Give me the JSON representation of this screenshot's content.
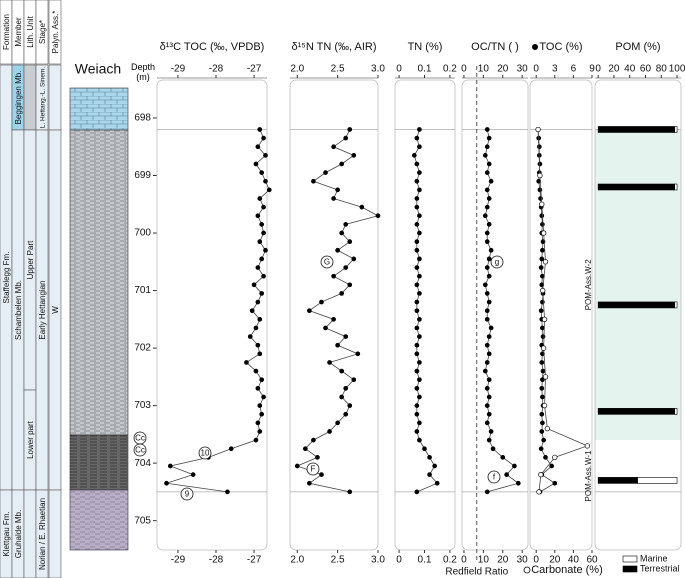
{
  "stratigraphy": {
    "headers": [
      "Formation",
      "Member",
      "Lith. Unit",
      "Stage*",
      "Palyn. Ass.*"
    ],
    "formation": [
      "Staffelegg Fm.",
      "Klettgau Fm."
    ],
    "member": [
      "Beggingen Mb.",
      "Schambelen Mb.",
      "Gruhalde Mb."
    ],
    "lith_unit": [
      "Upper Part",
      "Lower part"
    ],
    "stage": [
      "L. Hettang.-L. Sinem.",
      "Early Hettangian",
      "Norian / E. Rhaetian"
    ],
    "palyn": [
      "W"
    ]
  },
  "lithology": {
    "site": "Weiach",
    "depth_label": "Depth (m)",
    "annotations": [
      "Cc",
      "Cc"
    ]
  },
  "chart_data": [
    {
      "type": "line",
      "title": "δ¹³C TOC (‰, VPDB)",
      "xlim": [
        -29.55,
        -26.66
      ],
      "xticks": [
        -29,
        -28,
        -27
      ],
      "ylim": [
        697.34,
        705.51
      ],
      "yticks": [
        698,
        699,
        700,
        701,
        702,
        703,
        704,
        705
      ],
      "hlines": [
        698.2,
        704.5
      ],
      "annotations": [
        "10",
        "9"
      ],
      "series": [
        {
          "color": "#000000",
          "y": [
            698.2,
            698.35,
            698.5,
            698.65,
            698.8,
            698.95,
            699.1,
            699.25,
            699.4,
            699.55,
            699.7,
            699.85,
            700.0,
            700.15,
            700.3,
            700.45,
            700.6,
            700.75,
            700.9,
            701.05,
            701.2,
            701.35,
            701.5,
            701.65,
            701.8,
            701.95,
            702.1,
            702.25,
            702.4,
            702.55,
            702.7,
            702.85,
            703.0,
            703.15,
            703.3,
            703.45,
            703.6,
            703.75,
            703.9,
            704.05,
            704.2,
            704.35,
            704.5
          ],
          "values": [
            -26.85,
            -26.75,
            -26.9,
            -26.7,
            -26.95,
            -26.8,
            -26.7,
            -26.6,
            -26.85,
            -26.75,
            -26.9,
            -26.8,
            -26.75,
            -26.85,
            -26.7,
            -26.8,
            -26.9,
            -26.75,
            -27.0,
            -26.8,
            -26.9,
            -27.05,
            -26.85,
            -26.95,
            -27.1,
            -26.9,
            -26.85,
            -27.2,
            -26.95,
            -26.8,
            -26.9,
            -26.75,
            -26.85,
            -26.8,
            -26.9,
            -26.85,
            -26.95,
            -27.6,
            -28.2,
            -29.2,
            -28.6,
            -29.3,
            -27.7
          ]
        }
      ]
    },
    {
      "type": "line",
      "title": "δ¹⁵N TN (‰, AIR)",
      "xlim": [
        1.91,
        3.0
      ],
      "xticks": [
        {
          "value": 2,
          "label": "2.0"
        },
        2.5,
        {
          "value": 3,
          "label": "3.0"
        }
      ],
      "ylim": [
        697.34,
        705.51
      ],
      "annotations": [
        "G",
        "F"
      ],
      "series": [
        {
          "color": "#000000",
          "y": [
            698.2,
            698.35,
            698.5,
            698.65,
            698.8,
            698.95,
            699.1,
            699.25,
            699.4,
            699.55,
            699.7,
            699.85,
            700.0,
            700.15,
            700.3,
            700.45,
            700.6,
            700.75,
            700.9,
            701.05,
            701.2,
            701.35,
            701.5,
            701.65,
            701.8,
            701.95,
            702.1,
            702.25,
            702.4,
            702.55,
            702.7,
            702.85,
            703.0,
            703.15,
            703.3,
            703.45,
            703.6,
            703.75,
            703.9,
            704.05,
            704.2,
            704.35,
            704.5
          ],
          "values": [
            2.65,
            2.6,
            2.45,
            2.7,
            2.55,
            2.35,
            2.2,
            2.5,
            2.45,
            2.8,
            3.0,
            2.6,
            2.55,
            2.65,
            2.5,
            2.7,
            2.6,
            2.45,
            2.65,
            2.55,
            2.3,
            2.15,
            2.45,
            2.35,
            2.6,
            2.5,
            2.75,
            2.4,
            2.55,
            2.7,
            2.6,
            2.55,
            2.65,
            2.6,
            2.5,
            2.4,
            2.2,
            2.1,
            2.25,
            2.0,
            2.3,
            2.15,
            2.65
          ]
        }
      ]
    },
    {
      "type": "line",
      "title": "TN (%)",
      "xlim": [
        -0.016,
        0.22
      ],
      "xticks": [
        0,
        0.1,
        0.2
      ],
      "ylim": [
        697.34,
        705.51
      ],
      "series": [
        {
          "color": "#000000",
          "y": [
            698.2,
            698.35,
            698.5,
            698.65,
            698.8,
            698.95,
            699.1,
            699.25,
            699.4,
            699.55,
            699.7,
            699.85,
            700.0,
            700.15,
            700.3,
            700.45,
            700.6,
            700.75,
            700.9,
            701.05,
            701.2,
            701.35,
            701.5,
            701.65,
            701.8,
            701.95,
            702.1,
            702.25,
            702.4,
            702.55,
            702.7,
            702.85,
            703.0,
            703.15,
            703.3,
            703.45,
            703.6,
            703.75,
            703.9,
            704.05,
            704.2,
            704.35,
            704.5
          ],
          "values": [
            0.08,
            0.07,
            0.08,
            0.06,
            0.07,
            0.08,
            0.07,
            0.08,
            0.07,
            0.07,
            0.08,
            0.07,
            0.08,
            0.07,
            0.07,
            0.08,
            0.07,
            0.08,
            0.07,
            0.08,
            0.07,
            0.07,
            0.08,
            0.07,
            0.08,
            0.07,
            0.07,
            0.08,
            0.07,
            0.08,
            0.07,
            0.08,
            0.07,
            0.07,
            0.08,
            0.07,
            0.08,
            0.1,
            0.12,
            0.14,
            0.12,
            0.15,
            0.07
          ]
        }
      ]
    },
    {
      "type": "line",
      "title": "OC/TN ( )",
      "xlim": [
        -1,
        33
      ],
      "xticks": [
        0,
        10,
        20,
        30
      ],
      "ylim": [
        697.34,
        705.51
      ],
      "vline": {
        "value": 6.6,
        "label": "Redfield Ratio"
      },
      "annotations": [
        "g",
        "f"
      ],
      "series": [
        {
          "color": "#000000",
          "y": [
            698.2,
            698.35,
            698.5,
            698.65,
            698.8,
            698.95,
            699.1,
            699.25,
            699.4,
            699.55,
            699.7,
            699.85,
            700.0,
            700.15,
            700.3,
            700.45,
            700.6,
            700.75,
            700.9,
            701.05,
            701.2,
            701.35,
            701.5,
            701.65,
            701.8,
            701.95,
            702.1,
            702.25,
            702.4,
            702.55,
            702.7,
            702.85,
            703.0,
            703.15,
            703.3,
            703.45,
            703.6,
            703.75,
            703.9,
            704.05,
            704.2,
            704.35,
            704.5
          ],
          "values": [
            12,
            13,
            12,
            11,
            13,
            12,
            14,
            12,
            13,
            12,
            11,
            13,
            12,
            12,
            14,
            13,
            12,
            13,
            11,
            12,
            13,
            12,
            12,
            14,
            13,
            12,
            13,
            12,
            11,
            13,
            12,
            13,
            12,
            13,
            12,
            14,
            13,
            15,
            20,
            26,
            22,
            28,
            12
          ]
        }
      ]
    },
    {
      "type": "line",
      "title": "TOC (%)",
      "xlim": [
        -1,
        9
      ],
      "xticks": [
        0,
        3,
        6,
        9
      ],
      "x2_label": "Carbonate (%)",
      "x2lim": [
        -6.67,
        60
      ],
      "x2ticks": [
        0,
        20,
        40,
        60
      ],
      "ylim": [
        697.34,
        705.51
      ],
      "series": [
        {
          "color": "#000000",
          "marker": "filled",
          "y": [
            698.2,
            698.35,
            698.5,
            698.65,
            698.8,
            698.95,
            699.1,
            699.25,
            699.4,
            699.55,
            699.7,
            699.85,
            700.0,
            700.15,
            700.3,
            700.45,
            700.6,
            700.75,
            700.9,
            701.05,
            701.2,
            701.35,
            701.5,
            701.65,
            701.8,
            701.95,
            702.1,
            702.25,
            702.4,
            702.55,
            702.7,
            702.85,
            703.0,
            703.15,
            703.3,
            703.45,
            703.6,
            703.75,
            703.9,
            704.05,
            704.2,
            704.35,
            704.5
          ],
          "values": [
            0.3,
            0.4,
            0.5,
            0.5,
            0.6,
            0.5,
            0.4,
            0.6,
            0.7,
            0.8,
            0.9,
            1.0,
            0.9,
            1.1,
            1.0,
            0.9,
            0.8,
            1.0,
            0.9,
            1.1,
            1.0,
            0.8,
            0.9,
            1.0,
            1.1,
            0.9,
            1.0,
            0.9,
            1.1,
            1.0,
            0.9,
            1.0,
            1.1,
            0.9,
            1.0,
            0.9,
            1.2,
            0.8,
            1.5,
            2.5,
            0.9,
            3.0,
            0.6
          ]
        },
        {
          "color": "#000000",
          "marker": "open",
          "axis": "x2",
          "y": [
            698.2,
            699.0,
            699.5,
            700.0,
            700.5,
            701.0,
            701.5,
            702.0,
            702.5,
            703.0,
            703.4,
            703.7,
            703.9,
            704.2,
            704.5
          ],
          "values": [
            2,
            4,
            6,
            8,
            10,
            7,
            9,
            8,
            10,
            9,
            12,
            55,
            20,
            5,
            3
          ]
        }
      ]
    },
    {
      "type": "bar",
      "title": "POM (%)",
      "xlim": [
        -4,
        105
      ],
      "xticks": [
        0,
        20,
        40,
        60,
        80,
        100
      ],
      "ylim": [
        697.34,
        705.51
      ],
      "y": [
        698.2,
        699.2,
        701.25,
        703.1,
        704.3
      ],
      "bands": [
        {
          "label": "POM-Ass.W-2",
          "range": [
            698.2,
            703.6
          ],
          "color": "#e4f3ee"
        },
        {
          "label": "POM-Ass.W-1",
          "range": [
            703.6,
            704.5
          ],
          "color": "#ffffff"
        }
      ],
      "series": [
        {
          "name": "Marine",
          "color": "#ffffff",
          "values": [
            3,
            3,
            3,
            3,
            50
          ]
        },
        {
          "name": "Terrestrial",
          "color": "#000000",
          "values": [
            97,
            97,
            97,
            97,
            50
          ]
        }
      ]
    }
  ]
}
